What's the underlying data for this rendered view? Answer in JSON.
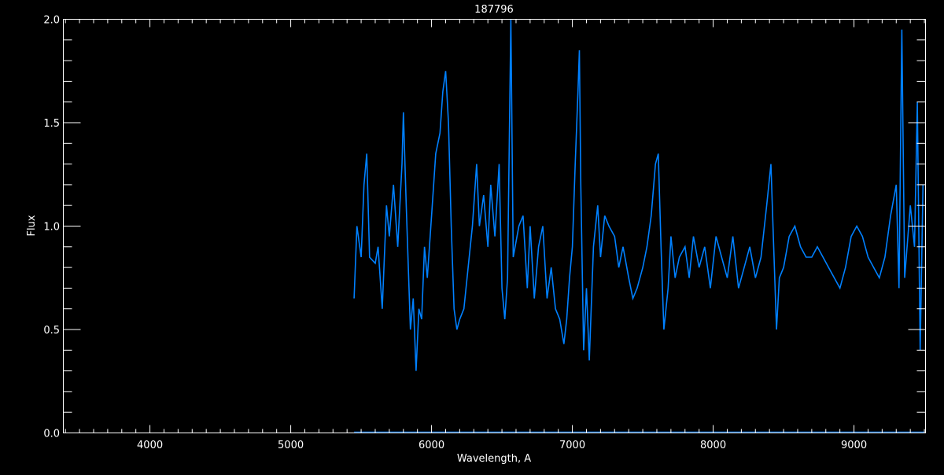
{
  "chart_data": {
    "type": "line",
    "title": "187796",
    "xlabel": "Wavelength, A",
    "ylabel": "Flux",
    "xlim": [
      3385,
      9508
    ],
    "ylim": [
      0,
      2.0
    ],
    "x_ticks": [
      4000,
      5000,
      6000,
      7000,
      8000,
      9000
    ],
    "x_tick_labels": [
      "4000",
      "5000",
      "6000",
      "7000",
      "8000",
      "9000"
    ],
    "x_minor_step": 100,
    "y_ticks": [
      0,
      0.5,
      1.0,
      1.5,
      2.0
    ],
    "y_tick_labels": [
      "0.0",
      "0.5",
      "1.0",
      "1.5",
      "2.0"
    ],
    "y_minor_step": 0.1,
    "grid": false,
    "background": "#000000",
    "axis_color": "#ffffff",
    "series": [
      {
        "color": "#0080ff",
        "x": [
          5450,
          5470,
          5500,
          5520,
          5540,
          5560,
          5600,
          5620,
          5650,
          5680,
          5700,
          5730,
          5760,
          5790,
          5800,
          5820,
          5850,
          5870,
          5890,
          5910,
          5930,
          5950,
          5970,
          6000,
          6030,
          6060,
          6080,
          6100,
          6120,
          6140,
          6160,
          6180,
          6200,
          6230,
          6260,
          6290,
          6320,
          6340,
          6370,
          6400,
          6420,
          6450,
          6480,
          6500,
          6520,
          6540,
          6563,
          6580,
          6620,
          6650,
          6680,
          6700,
          6730,
          6760,
          6790,
          6820,
          6850,
          6880,
          6910,
          6940,
          6960,
          6980,
          7000,
          7020,
          7040,
          7050,
          7060,
          7080,
          7100,
          7120,
          7150,
          7180,
          7200,
          7230,
          7260,
          7300,
          7330,
          7360,
          7400,
          7430,
          7460,
          7500,
          7530,
          7560,
          7590,
          7610,
          7630,
          7650,
          7680,
          7700,
          7730,
          7760,
          7800,
          7830,
          7860,
          7900,
          7940,
          7980,
          8020,
          8060,
          8100,
          8140,
          8180,
          8220,
          8260,
          8300,
          8340,
          8380,
          8410,
          8430,
          8450,
          8470,
          8500,
          8540,
          8580,
          8620,
          8660,
          8700,
          8740,
          8780,
          8820,
          8860,
          8900,
          8940,
          8980,
          9020,
          9060,
          9100,
          9140,
          9180,
          9220,
          9260,
          9300,
          9320,
          9340,
          9360,
          9400,
          9430,
          9450,
          9470,
          9490
        ],
        "y": [
          0.65,
          1.0,
          0.85,
          1.2,
          1.35,
          0.85,
          0.82,
          0.9,
          0.6,
          1.1,
          0.95,
          1.2,
          0.9,
          1.3,
          1.55,
          1.1,
          0.5,
          0.65,
          0.3,
          0.6,
          0.55,
          0.9,
          0.75,
          1.05,
          1.35,
          1.45,
          1.65,
          1.75,
          1.5,
          1.0,
          0.6,
          0.5,
          0.55,
          0.6,
          0.8,
          1.0,
          1.3,
          1.0,
          1.15,
          0.9,
          1.2,
          0.95,
          1.3,
          0.7,
          0.55,
          0.75,
          2.0,
          0.85,
          1.0,
          1.05,
          0.7,
          1.0,
          0.65,
          0.9,
          1.0,
          0.65,
          0.8,
          0.6,
          0.55,
          0.43,
          0.55,
          0.75,
          0.9,
          1.3,
          1.65,
          1.85,
          1.2,
          0.4,
          0.7,
          0.35,
          0.9,
          1.1,
          0.85,
          1.05,
          1.0,
          0.95,
          0.8,
          0.9,
          0.75,
          0.65,
          0.7,
          0.8,
          0.9,
          1.05,
          1.3,
          1.35,
          0.9,
          0.5,
          0.7,
          0.95,
          0.75,
          0.85,
          0.9,
          0.75,
          0.95,
          0.8,
          0.9,
          0.7,
          0.95,
          0.85,
          0.75,
          0.95,
          0.7,
          0.8,
          0.9,
          0.75,
          0.85,
          1.1,
          1.3,
          0.9,
          0.5,
          0.75,
          0.8,
          0.95,
          1.0,
          0.9,
          0.85,
          0.85,
          0.9,
          0.85,
          0.8,
          0.75,
          0.7,
          0.8,
          0.95,
          1.0,
          0.95,
          0.85,
          0.8,
          0.75,
          0.85,
          1.05,
          1.2,
          0.7,
          1.95,
          0.75,
          1.1,
          0.9,
          1.6,
          0.4,
          1.2
        ]
      },
      {
        "color": "#0080ff",
        "x": [
          5450,
          9500
        ],
        "y": [
          0.005,
          0.005
        ]
      }
    ]
  }
}
